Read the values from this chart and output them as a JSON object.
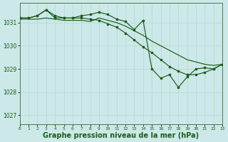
{
  "bg_color": "#cce8e8",
  "grid_color": "#b8dcd8",
  "line_color": "#1a5c1a",
  "xlabel": "Graphe pression niveau de la mer (hPa)",
  "xlabel_fontsize": 7,
  "xlim": [
    0,
    23
  ],
  "ylim": [
    1026.6,
    1031.85
  ],
  "yticks": [
    1027,
    1028,
    1029,
    1030,
    1031
  ],
  "xticks": [
    0,
    1,
    2,
    3,
    4,
    5,
    6,
    7,
    8,
    9,
    10,
    11,
    12,
    13,
    14,
    15,
    16,
    17,
    18,
    19,
    20,
    21,
    22,
    23
  ],
  "series": [
    {
      "y": [
        1031.2,
        1031.2,
        1031.3,
        1031.55,
        1031.2,
        1031.2,
        1031.2,
        1031.3,
        1031.35,
        1031.45,
        1031.35,
        1031.15,
        1031.05,
        1030.7,
        1031.1,
        1029.0,
        1028.6,
        1028.75,
        1028.2,
        1028.65,
        1029.0,
        1029.05,
        1029.0,
        1029.2
      ],
      "markers": true
    },
    {
      "y": [
        1031.2,
        1031.2,
        1031.3,
        1031.55,
        1031.3,
        1031.2,
        1031.2,
        1031.2,
        1031.15,
        1031.1,
        1030.95,
        1030.8,
        1030.55,
        1030.25,
        1029.95,
        1029.7,
        1029.4,
        1029.1,
        1028.9,
        1028.75,
        1028.75,
        1028.85,
        1029.0,
        1029.2
      ],
      "markers": true
    },
    {
      "y": [
        1031.15,
        1031.15,
        1031.15,
        1031.2,
        1031.15,
        1031.1,
        1031.1,
        1031.1,
        1031.05,
        1031.2,
        1031.1,
        1031.0,
        1030.85,
        1030.65,
        1030.45,
        1030.2,
        1030.0,
        1029.8,
        1029.6,
        1029.4,
        1029.3,
        1029.2,
        1029.15,
        1029.2
      ],
      "markers": false
    }
  ]
}
